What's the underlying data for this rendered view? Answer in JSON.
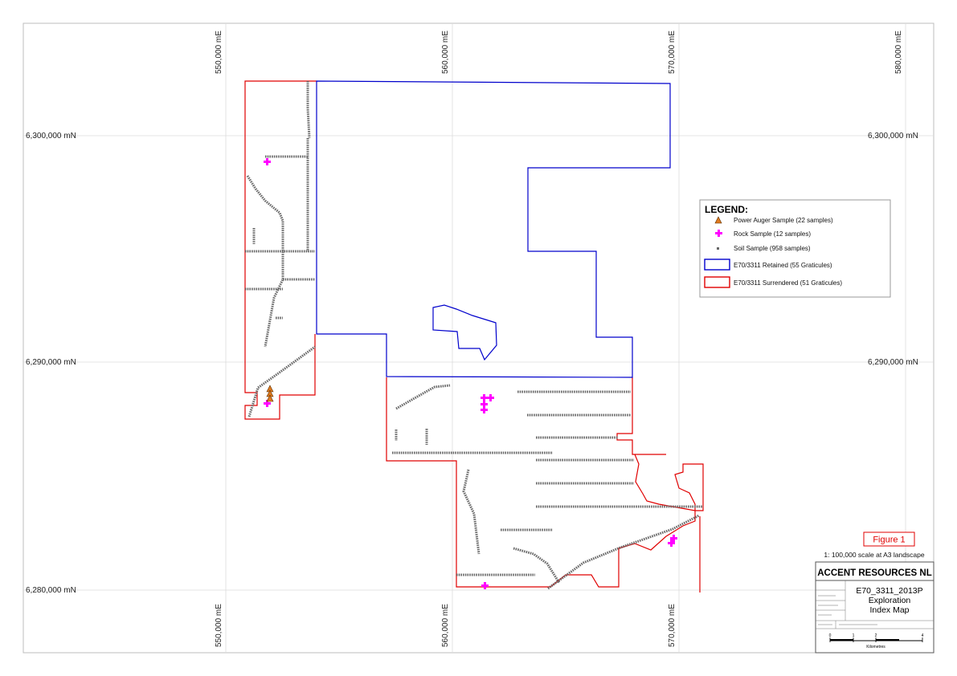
{
  "grid": {
    "easting_labels": [
      "550,000 mE",
      "560,000 mE",
      "570,000 mE",
      "580,000 mE"
    ],
    "northing_labels": [
      "6,300,000 mN",
      "6,290,000 mN",
      "6,280,000 mN"
    ]
  },
  "legend": {
    "title": "LEGEND:",
    "items": [
      {
        "label": "Power Auger Sample (22 samples)",
        "symbol": "triangle",
        "color": "#e07a1f"
      },
      {
        "label": "Rock Sample (12 samples)",
        "symbol": "cross",
        "color": "#ff00ff"
      },
      {
        "label": "Soil Sample (958 samples)",
        "symbol": "dot",
        "color": "#666666"
      },
      {
        "label": "E70/3311 Retained (55 Graticules)",
        "symbol": "box",
        "color": "#0000cc"
      },
      {
        "label": "E70/3311 Surrendered (51 Graticules)",
        "symbol": "box",
        "color": "#e00000"
      }
    ]
  },
  "figure_label": "Figure 1",
  "scale_text": "1: 100,000 scale at A3 landscape",
  "title_block": {
    "company": "ACCENT RESOURCES NL",
    "map_title_1": "E70_3311_2013P",
    "map_title_2": "Exploration",
    "map_title_3": "Index Map",
    "scalebar_ticks": [
      "0",
      "1",
      "2",
      "4"
    ],
    "scalebar_unit": "Kilometres"
  },
  "colors": {
    "retained": "#0000cc",
    "surrendered": "#e00000",
    "soil": "#6a6a6a",
    "rock": "#ff00ff",
    "auger": "#e07a1f",
    "grid": "#d6d6d6"
  }
}
